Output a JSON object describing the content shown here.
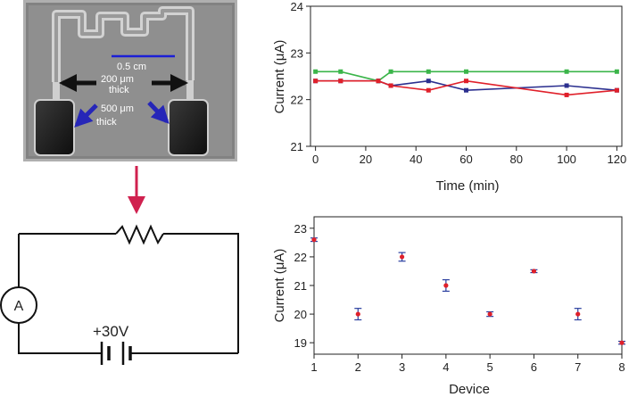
{
  "photo": {
    "scale_label": "0.5 cm",
    "annot_200_line1": "200 μm",
    "annot_200_line2": "thick",
    "annot_500_line1": "500 μm",
    "annot_500_line2": "thick",
    "colors": {
      "scale_bar": "#1b1fd6",
      "arrow_black": "#111111",
      "arrow_blue": "#2626b8",
      "background": "#8f8f8f"
    }
  },
  "connector_arrow": {
    "color": "#d0214f"
  },
  "circuit": {
    "ammeter_label": "A",
    "voltage_label": "+30V"
  },
  "chart_data": [
    {
      "type": "line",
      "title": "",
      "xlabel": "Time (min)",
      "ylabel": "Current (μA)",
      "xlim": [
        -2,
        122
      ],
      "ylim": [
        21,
        24
      ],
      "xticks": [
        0,
        20,
        40,
        60,
        80,
        100,
        120
      ],
      "yticks": [
        21,
        22,
        23,
        24
      ],
      "series": [
        {
          "name": "green",
          "color": "#3bb54a",
          "x": [
            0,
            10,
            25,
            30,
            45,
            60,
            100,
            120
          ],
          "y": [
            22.6,
            22.6,
            22.4,
            22.6,
            22.6,
            22.6,
            22.6,
            22.6
          ]
        },
        {
          "name": "blue",
          "color": "#2b2f8f",
          "x": [
            0,
            10,
            25,
            30,
            45,
            60,
            100,
            120
          ],
          "y": [
            22.4,
            22.4,
            22.4,
            22.3,
            22.4,
            22.2,
            22.3,
            22.2
          ]
        },
        {
          "name": "red",
          "color": "#e0202a",
          "x": [
            0,
            10,
            25,
            30,
            45,
            60,
            100,
            120
          ],
          "y": [
            22.4,
            22.4,
            22.4,
            22.3,
            22.2,
            22.4,
            22.1,
            22.2
          ]
        }
      ]
    },
    {
      "type": "scatter",
      "title": "",
      "xlabel": "Device",
      "ylabel": "Current (μA)",
      "xlim": [
        1,
        8
      ],
      "ylim": [
        18.6,
        23.4
      ],
      "xticks": [
        1,
        2,
        3,
        4,
        5,
        6,
        7,
        8
      ],
      "yticks": [
        19,
        20,
        21,
        22,
        23
      ],
      "marker_color": "#e0202a",
      "errorbar_color": "#2b3f9f",
      "points": [
        {
          "x": 1,
          "y": 22.6,
          "err": 0.06
        },
        {
          "x": 2,
          "y": 20.0,
          "err": 0.2
        },
        {
          "x": 3,
          "y": 22.0,
          "err": 0.15
        },
        {
          "x": 4,
          "y": 21.0,
          "err": 0.2
        },
        {
          "x": 5,
          "y": 20.0,
          "err": 0.08
        },
        {
          "x": 6,
          "y": 21.5,
          "err": 0.05
        },
        {
          "x": 7,
          "y": 20.0,
          "err": 0.2
        },
        {
          "x": 8,
          "y": 19.0,
          "err": 0.05
        }
      ]
    }
  ]
}
